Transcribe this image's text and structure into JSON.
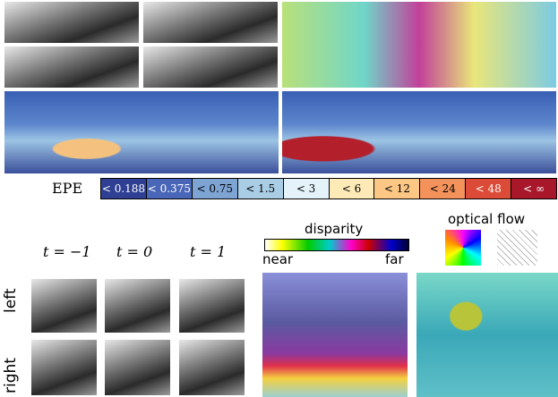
{
  "legend": {
    "label": "EPE",
    "bins": [
      {
        "label": "< 0.188",
        "color": "#2f3f94"
      },
      {
        "label": "< 0.375",
        "color": "#4a66b8"
      },
      {
        "label": "< 0.75",
        "color": "#7ea4d4"
      },
      {
        "label": "< 1.5",
        "color": "#aacde6"
      },
      {
        "label": "< 3",
        "color": "#e3f3f9"
      },
      {
        "label": "< 6",
        "color": "#fdeab6"
      },
      {
        "label": "< 12",
        "color": "#fcc784"
      },
      {
        "label": "< 24",
        "color": "#f4925b"
      },
      {
        "label": "< 48",
        "color": "#db4b37"
      },
      {
        "label": "< ∞",
        "color": "#a8172a"
      }
    ]
  },
  "time_labels": [
    "t = −1",
    "t = 0",
    "t = 1"
  ],
  "row_labels": [
    "left",
    "right"
  ],
  "disparity": {
    "title": "disparity",
    "near": "near",
    "far": "far"
  },
  "optical_flow": {
    "title": "optical flow"
  }
}
